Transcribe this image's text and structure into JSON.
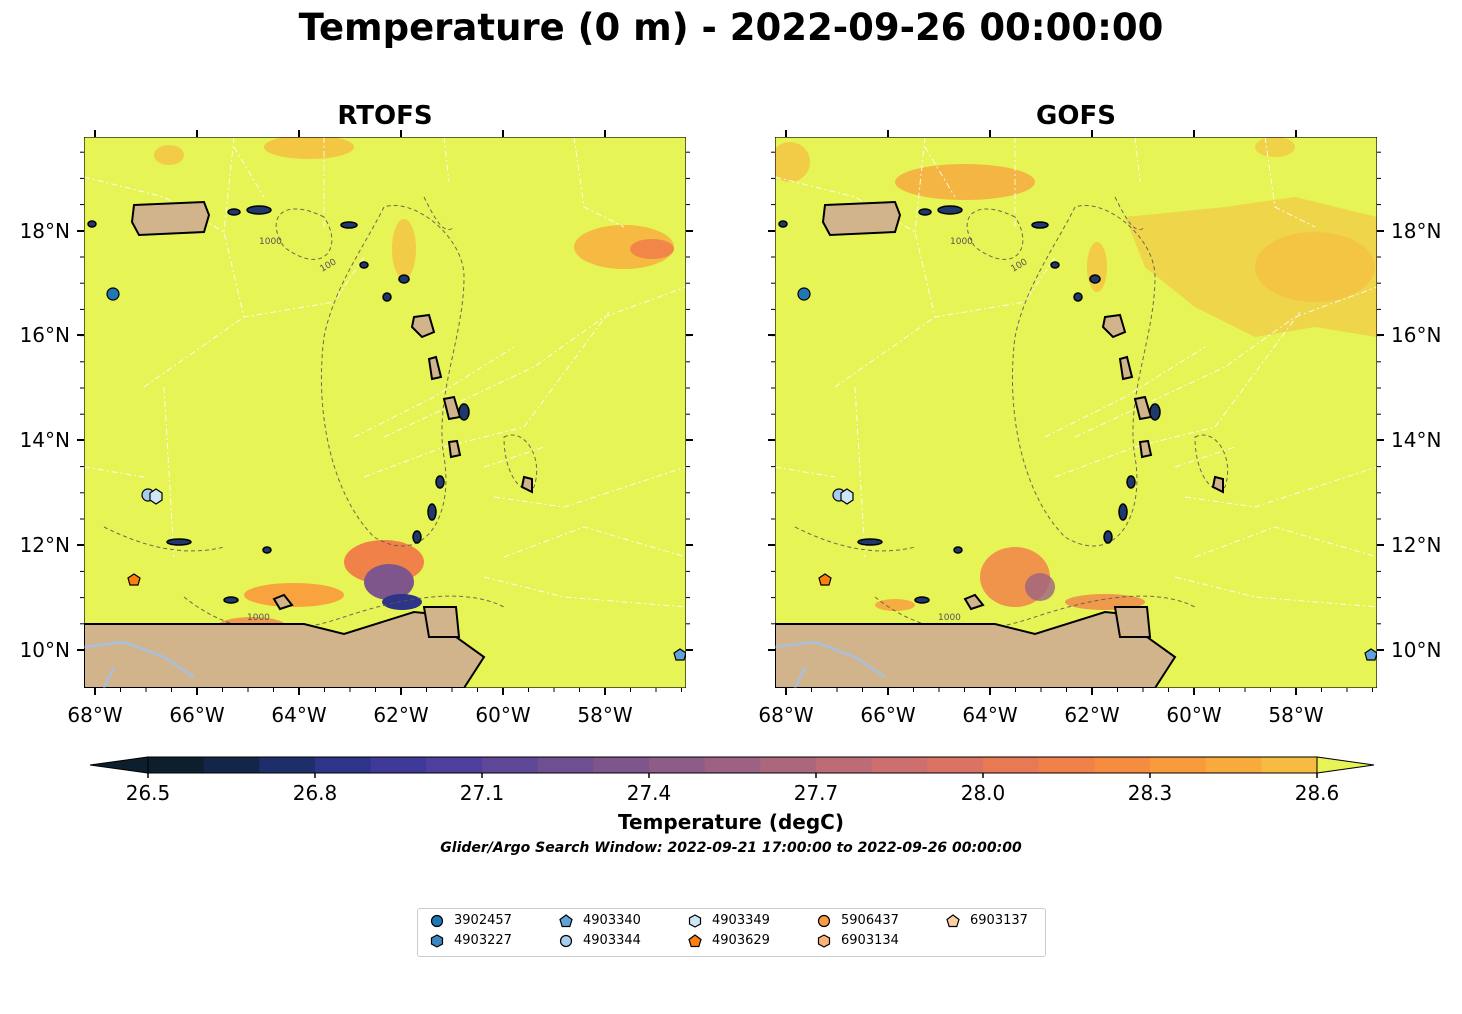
{
  "title": "Temperature (0 m) - 2022-09-26 00:00:00",
  "panels": [
    {
      "title": "RTOFS"
    },
    {
      "title": "GOFS"
    }
  ],
  "axes": {
    "lon_ticks": [
      "68°W",
      "66°W",
      "64°W",
      "62°W",
      "60°W",
      "58°W"
    ],
    "lat_ticks": [
      "10°N",
      "12°N",
      "14°N",
      "16°N",
      "18°N"
    ]
  },
  "contour_labels": [
    "1000",
    "100",
    "1000"
  ],
  "colorbar": {
    "label": "Temperature (degC)",
    "ticks": [
      "26.5",
      "26.8",
      "27.1",
      "27.4",
      "27.7",
      "28.0",
      "28.3",
      "28.6"
    ],
    "min": 26.5,
    "max": 28.6,
    "colors": [
      "#0d1f2d",
      "#13264a",
      "#1d2e6b",
      "#2e3488",
      "#3f3a9a",
      "#4f3f9c",
      "#5f4797",
      "#6e4f92",
      "#7e568c",
      "#8d5d87",
      "#9d6282",
      "#ad677c",
      "#bd6b76",
      "#cc6f6e",
      "#da7363",
      "#e77a55",
      "#f08249",
      "#f68c40",
      "#f99a3b",
      "#f9aa3c",
      "#f6bb40",
      "#f1cd46",
      "#e6f455"
    ]
  },
  "subtitle": "Glider/Argo Search Window: 2022-09-21 17:00:00 to 2022-09-26 00:00:00",
  "legend": [
    {
      "label": "3902457",
      "marker": "circle",
      "color": "#1f77b4"
    },
    {
      "label": "4903227",
      "marker": "hexagon",
      "color": "#3a86c2"
    },
    {
      "label": "4903340",
      "marker": "pentagon",
      "color": "#5fa3d9"
    },
    {
      "label": "4903344",
      "marker": "circle",
      "color": "#a6cdee"
    },
    {
      "label": "4903349",
      "marker": "hexagon",
      "color": "#cfe6f7"
    },
    {
      "label": "4903629",
      "marker": "pentagon",
      "color": "#ff7f0e"
    },
    {
      "label": "5906437",
      "marker": "circle",
      "color": "#fd9a44"
    },
    {
      "label": "6903134",
      "marker": "hexagon",
      "color": "#fdb277"
    },
    {
      "label": "6903137",
      "marker": "pentagon",
      "color": "#fdd0a2"
    }
  ],
  "colors": {
    "ocean": "#e6f455",
    "land": "#d2b48c",
    "warm_patch": "#f6a13f",
    "cool_patch": "#4a3e9c",
    "river": "#a8c0de"
  }
}
